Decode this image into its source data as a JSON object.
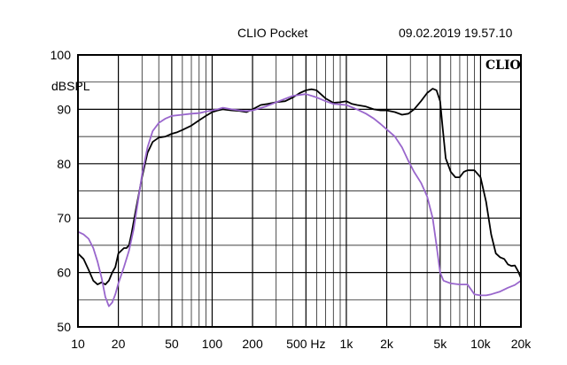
{
  "header": {
    "app": "CLIO Pocket",
    "timestamp": "09.02.2019 19.57.10",
    "logo": "CLIO"
  },
  "chart_data": {
    "type": "line",
    "title": "",
    "ylabel": "dBSPL",
    "xlabel": "",
    "xscale": "log",
    "xlim": [
      10,
      20000
    ],
    "ylim": [
      50,
      100
    ],
    "grid": true,
    "x_ticks": [
      {
        "v": 10,
        "label": "10"
      },
      {
        "v": 20,
        "label": "20"
      },
      {
        "v": 50,
        "label": "50"
      },
      {
        "v": 100,
        "label": "100"
      },
      {
        "v": 200,
        "label": "200"
      },
      {
        "v": 500,
        "label": "500 Hz"
      },
      {
        "v": 1000,
        "label": "1k"
      },
      {
        "v": 2000,
        "label": "2k"
      },
      {
        "v": 5000,
        "label": "5k"
      },
      {
        "v": 10000,
        "label": "10k"
      },
      {
        "v": 20000,
        "label": "20k"
      }
    ],
    "y_ticks": [
      {
        "v": 100,
        "label": "100"
      },
      {
        "v": 90,
        "label": "90"
      },
      {
        "v": 80,
        "label": "80"
      },
      {
        "v": 70,
        "label": "70"
      },
      {
        "v": 60,
        "label": "60"
      },
      {
        "v": 50,
        "label": "50"
      }
    ],
    "series": [
      {
        "color": "#000000",
        "points": [
          [
            10,
            63.5
          ],
          [
            11,
            62.5
          ],
          [
            12,
            60.5
          ],
          [
            13,
            58.5
          ],
          [
            14,
            57.8
          ],
          [
            15,
            58.2
          ],
          [
            16,
            57.8
          ],
          [
            17,
            58.5
          ],
          [
            18,
            60
          ],
          [
            19,
            61
          ],
          [
            20,
            63.5
          ],
          [
            21,
            64
          ],
          [
            22,
            64.5
          ],
          [
            23,
            64.5
          ],
          [
            24,
            65
          ],
          [
            25,
            67
          ],
          [
            27,
            71.5
          ],
          [
            30,
            77.5
          ],
          [
            33,
            82
          ],
          [
            36,
            84
          ],
          [
            40,
            84.8
          ],
          [
            45,
            85
          ],
          [
            50,
            85.5
          ],
          [
            55,
            85.8
          ],
          [
            60,
            86.2
          ],
          [
            70,
            87
          ],
          [
            80,
            88
          ],
          [
            90,
            88.8
          ],
          [
            100,
            89.5
          ],
          [
            110,
            89.8
          ],
          [
            120,
            90
          ],
          [
            140,
            89.8
          ],
          [
            160,
            89.7
          ],
          [
            180,
            89.5
          ],
          [
            200,
            90
          ],
          [
            230,
            90.8
          ],
          [
            260,
            91
          ],
          [
            300,
            91.3
          ],
          [
            350,
            91.5
          ],
          [
            400,
            92.2
          ],
          [
            450,
            93
          ],
          [
            500,
            93.5
          ],
          [
            550,
            93.7
          ],
          [
            600,
            93.5
          ],
          [
            700,
            92
          ],
          [
            800,
            91.2
          ],
          [
            900,
            91.3
          ],
          [
            1000,
            91.5
          ],
          [
            1100,
            91
          ],
          [
            1200,
            90.8
          ],
          [
            1400,
            90.5
          ],
          [
            1600,
            90
          ],
          [
            1800,
            89.8
          ],
          [
            2000,
            89.8
          ],
          [
            2300,
            89.5
          ],
          [
            2600,
            89
          ],
          [
            2900,
            89.2
          ],
          [
            3200,
            90
          ],
          [
            3600,
            91.5
          ],
          [
            4000,
            93
          ],
          [
            4400,
            93.8
          ],
          [
            4700,
            93.5
          ],
          [
            5000,
            91.5
          ],
          [
            5200,
            87
          ],
          [
            5500,
            81
          ],
          [
            6000,
            78.5
          ],
          [
            6500,
            77.5
          ],
          [
            7000,
            77.5
          ],
          [
            7500,
            78.5
          ],
          [
            8000,
            78.8
          ],
          [
            9000,
            78.8
          ],
          [
            10000,
            77.5
          ],
          [
            11000,
            73
          ],
          [
            12000,
            67
          ],
          [
            13000,
            63.5
          ],
          [
            14000,
            62.8
          ],
          [
            15000,
            62.5
          ],
          [
            16000,
            61.5
          ],
          [
            17000,
            61.2
          ],
          [
            18000,
            61.3
          ],
          [
            19000,
            60.3
          ],
          [
            20000,
            59
          ]
        ]
      },
      {
        "color": "#9966cc",
        "points": [
          [
            10,
            67.5
          ],
          [
            11,
            67
          ],
          [
            12,
            66.2
          ],
          [
            13,
            64.5
          ],
          [
            14,
            62
          ],
          [
            15,
            59
          ],
          [
            16,
            55.5
          ],
          [
            17,
            53.8
          ],
          [
            18,
            54.5
          ],
          [
            19,
            56
          ],
          [
            20,
            58
          ],
          [
            22,
            61
          ],
          [
            24,
            64
          ],
          [
            26,
            68
          ],
          [
            28,
            73
          ],
          [
            30,
            78
          ],
          [
            33,
            83
          ],
          [
            36,
            86
          ],
          [
            40,
            87.5
          ],
          [
            45,
            88.3
          ],
          [
            50,
            88.8
          ],
          [
            60,
            89
          ],
          [
            70,
            89.2
          ],
          [
            80,
            89.3
          ],
          [
            90,
            89.6
          ],
          [
            100,
            89.8
          ],
          [
            110,
            90
          ],
          [
            120,
            90.3
          ],
          [
            140,
            90
          ],
          [
            160,
            89.8
          ],
          [
            180,
            89.7
          ],
          [
            200,
            89.8
          ],
          [
            250,
            90.5
          ],
          [
            300,
            91.3
          ],
          [
            400,
            92.5
          ],
          [
            500,
            92.8
          ],
          [
            600,
            92.2
          ],
          [
            700,
            91.5
          ],
          [
            800,
            91
          ],
          [
            1000,
            90.8
          ],
          [
            1200,
            90
          ],
          [
            1400,
            89.2
          ],
          [
            1600,
            88.3
          ],
          [
            1800,
            87.3
          ],
          [
            2000,
            86.3
          ],
          [
            2300,
            85
          ],
          [
            2600,
            83
          ],
          [
            2900,
            80.5
          ],
          [
            3200,
            78.5
          ],
          [
            3600,
            76.5
          ],
          [
            4000,
            74
          ],
          [
            4400,
            70
          ],
          [
            4700,
            65
          ],
          [
            5000,
            60
          ],
          [
            5300,
            58.5
          ],
          [
            6000,
            58
          ],
          [
            7000,
            57.8
          ],
          [
            8000,
            57.8
          ],
          [
            9000,
            56
          ],
          [
            10000,
            55.8
          ],
          [
            11000,
            55.8
          ],
          [
            12000,
            56
          ],
          [
            14000,
            56.5
          ],
          [
            16000,
            57.2
          ],
          [
            18000,
            57.7
          ],
          [
            20000,
            58.5
          ]
        ]
      }
    ]
  }
}
